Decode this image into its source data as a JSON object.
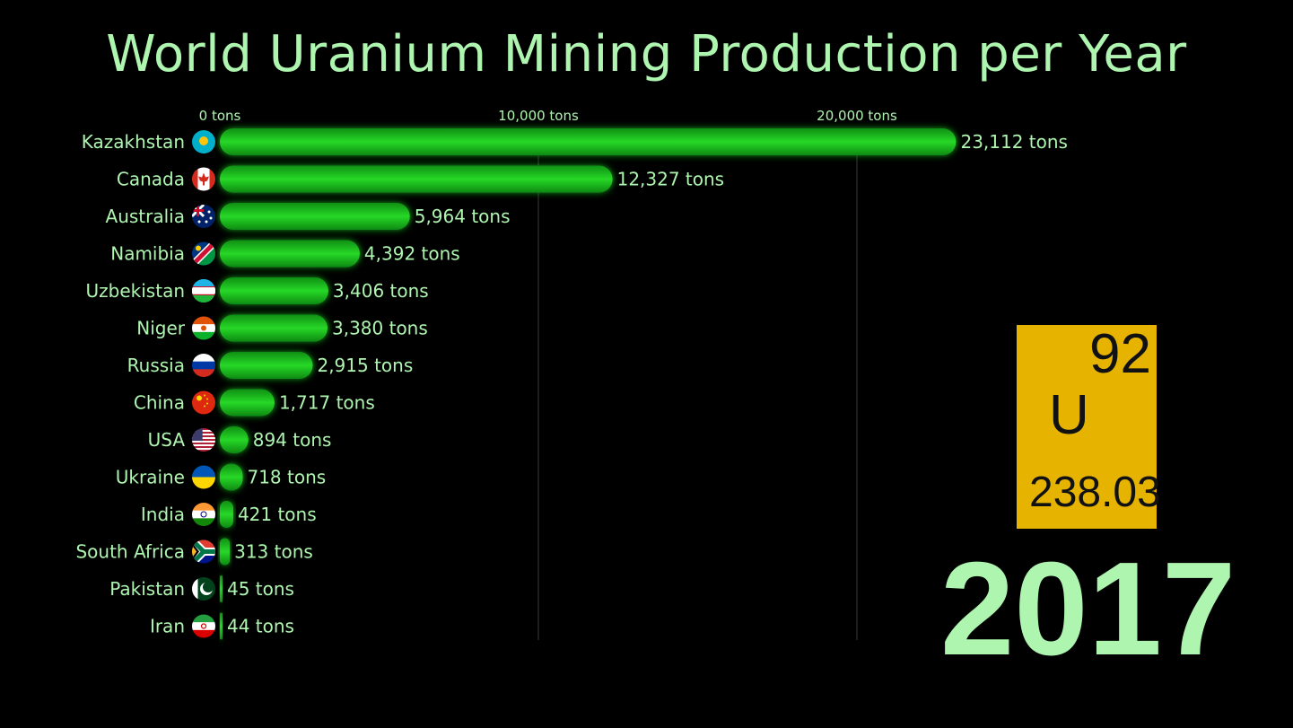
{
  "chart_data": {
    "type": "bar",
    "orientation": "horizontal",
    "title": "World Uranium Mining Production per Year",
    "unit": "tons",
    "xlim": [
      0,
      30000
    ],
    "x_ticks": [
      0,
      10000,
      20000
    ],
    "x_tick_labels": [
      "0 tons",
      "10,000 tons",
      "20,000 tons"
    ],
    "grid": true,
    "bar_color": "#1fc41f",
    "categories": [
      "Kazakhstan",
      "Canada",
      "Australia",
      "Namibia",
      "Uzbekistan",
      "Niger",
      "Russia",
      "China",
      "USA",
      "Ukraine",
      "India",
      "South Africa",
      "Pakistan",
      "Iran"
    ],
    "values": [
      23112,
      12327,
      5964,
      4392,
      3406,
      3380,
      2915,
      1717,
      894,
      718,
      421,
      313,
      45,
      44
    ],
    "value_labels": [
      "23,112 tons",
      "12,327 tons",
      "5,964 tons",
      "4,392 tons",
      "3,406 tons",
      "3,380 tons",
      "2,915 tons",
      "1,717 tons",
      "894 tons",
      "718 tons",
      "421 tons",
      "313 tons",
      "45 tons",
      "44 tons"
    ],
    "flag_icons": [
      "kazakhstan-flag-icon",
      "canada-flag-icon",
      "australia-flag-icon",
      "namibia-flag-icon",
      "uzbekistan-flag-icon",
      "niger-flag-icon",
      "russia-flag-icon",
      "china-flag-icon",
      "usa-flag-icon",
      "ukraine-flag-icon",
      "india-flag-icon",
      "south-africa-flag-icon",
      "pakistan-flag-icon",
      "iran-flag-icon"
    ]
  },
  "element_card": {
    "atomic_number": "92",
    "symbol": "U",
    "atomic_mass": "238.03",
    "color": "#e5b300"
  },
  "year": "2017",
  "colors": {
    "background": "#000000",
    "text": "#aef5b0",
    "grid": "#3a3a3a"
  }
}
